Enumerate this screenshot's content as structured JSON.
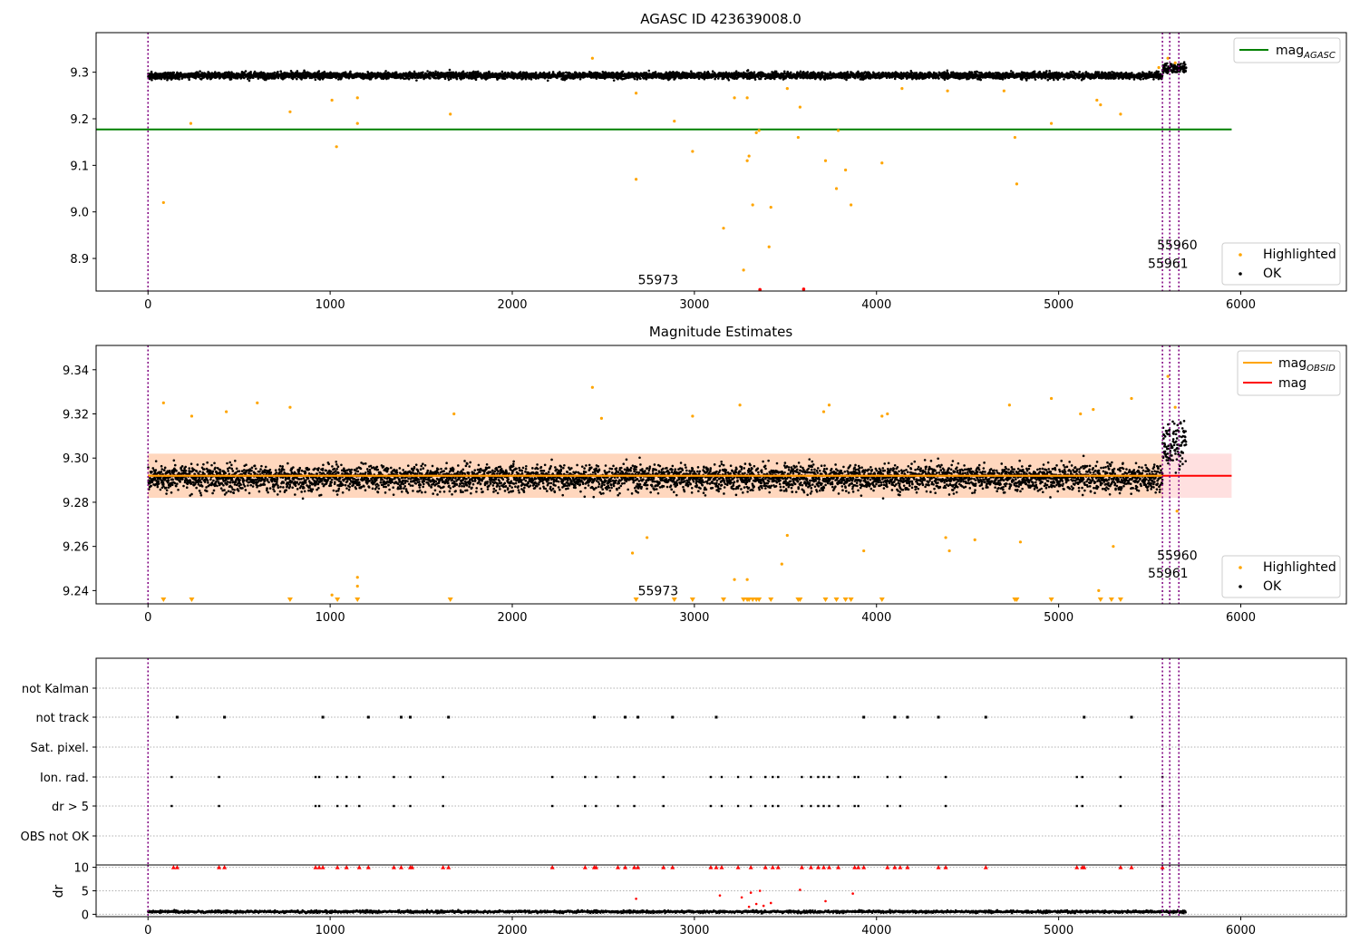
{
  "chart_data": [
    {
      "type": "scatter",
      "title": "AGASC ID 423639008.0",
      "xlim": [
        -285,
        6580
      ],
      "ylim": [
        8.83,
        9.385
      ],
      "xticks": [
        "0",
        "1000",
        "2000",
        "3000",
        "4000",
        "5000",
        "6000"
      ],
      "yticks": [
        "8.9",
        "9.0",
        "9.1",
        "9.2",
        "9.3"
      ],
      "legend_upper": {
        "placement": "upper-right",
        "entries": [
          {
            "label": "mag",
            "sub": "AGASC",
            "color": "#008000",
            "kind": "line"
          }
        ]
      },
      "legend_lower": {
        "placement": "lower-right",
        "entries": [
          {
            "label": "Highlighted",
            "color": "#ffa500",
            "kind": "dot"
          },
          {
            "label": "OK",
            "color": "#000000",
            "kind": "dot"
          }
        ]
      },
      "mag_agasc": 9.177,
      "mag_agasc_xrange": [
        -285,
        5950
      ],
      "ok_band": {
        "x": [
          0,
          5700
        ],
        "center": 9.293,
        "spread": 0.009
      },
      "obsid_labels": [
        {
          "text": "55973",
          "x": 2690,
          "y": 8.845
        },
        {
          "text": "55960",
          "x": 5540,
          "y": 8.92
        },
        {
          "text": "55961",
          "x": 5490,
          "y": 8.88
        }
      ],
      "highlighted_points": [
        [
          85,
          9.02
        ],
        [
          235,
          9.19
        ],
        [
          780,
          9.215
        ],
        [
          1035,
          9.14
        ],
        [
          1150,
          9.19
        ],
        [
          1660,
          9.21
        ],
        [
          2680,
          9.07
        ],
        [
          2890,
          9.195
        ],
        [
          2990,
          9.13
        ],
        [
          3160,
          8.965
        ],
        [
          3270,
          8.875
        ],
        [
          3290,
          9.11
        ],
        [
          3300,
          9.12
        ],
        [
          3320,
          9.015
        ],
        [
          3340,
          9.17
        ],
        [
          3355,
          9.175
        ],
        [
          3420,
          9.01
        ],
        [
          3410,
          8.925
        ],
        [
          3570,
          9.16
        ],
        [
          3580,
          9.225
        ],
        [
          3720,
          9.11
        ],
        [
          3780,
          9.05
        ],
        [
          3830,
          9.09
        ],
        [
          3860,
          9.015
        ],
        [
          3790,
          9.175
        ],
        [
          4030,
          9.105
        ],
        [
          4760,
          9.16
        ],
        [
          4770,
          9.06
        ],
        [
          4960,
          9.19
        ],
        [
          5230,
          9.23
        ],
        [
          1010,
          9.24
        ],
        [
          1150,
          9.245
        ],
        [
          2440,
          9.33
        ],
        [
          2680,
          9.255
        ],
        [
          3220,
          9.245
        ],
        [
          3290,
          9.245
        ],
        [
          3510,
          9.265
        ],
        [
          4140,
          9.265
        ],
        [
          4390,
          9.26
        ],
        [
          4700,
          9.26
        ],
        [
          5210,
          9.24
        ],
        [
          5340,
          9.21
        ],
        [
          5550,
          9.31
        ],
        [
          5600,
          9.33
        ],
        [
          5640,
          9.32
        ]
      ],
      "flagged_points": [
        [
          3360,
          8.833
        ],
        [
          3600,
          8.834
        ]
      ]
    },
    {
      "type": "scatter",
      "title": "Magnitude Estimates",
      "xlim": [
        -285,
        6580
      ],
      "ylim": [
        9.234,
        9.351
      ],
      "xticks": [
        "0",
        "1000",
        "2000",
        "3000",
        "4000",
        "5000",
        "6000"
      ],
      "yticks": [
        "9.24",
        "9.26",
        "9.28",
        "9.30",
        "9.32",
        "9.34"
      ],
      "legend_upper": {
        "placement": "upper-right",
        "entries": [
          {
            "label": "mag",
            "sub": "OBSID",
            "color": "#ffa500",
            "kind": "line"
          },
          {
            "label": "mag",
            "sub": "",
            "color": "#ff0000",
            "kind": "line"
          }
        ]
      },
      "legend_lower": {
        "placement": "lower-right",
        "entries": [
          {
            "label": "Highlighted",
            "color": "#ffa500",
            "kind": "dot"
          },
          {
            "label": "OK",
            "color": "#000000",
            "kind": "dot"
          }
        ]
      },
      "mag": 9.292,
      "mag_band": [
        9.282,
        9.302
      ],
      "mag_xrange": [
        0,
        5950
      ],
      "ok_band": {
        "x": [
          0,
          5700
        ],
        "center": 9.291,
        "spread": 0.0075
      },
      "obsid_labels": [
        {
          "text": "55973",
          "x": 2690,
          "y": 9.238
        },
        {
          "text": "55960",
          "x": 5540,
          "y": 9.254
        },
        {
          "text": "55961",
          "x": 5490,
          "y": 9.246
        }
      ],
      "highlighted_points": [
        [
          85,
          9.325
        ],
        [
          240,
          9.319
        ],
        [
          430,
          9.321
        ],
        [
          600,
          9.325
        ],
        [
          780,
          9.323
        ],
        [
          1010,
          9.238
        ],
        [
          1150,
          9.246
        ],
        [
          1150,
          9.242
        ],
        [
          1680,
          9.32
        ],
        [
          2440,
          9.332
        ],
        [
          2490,
          9.318
        ],
        [
          2660,
          9.257
        ],
        [
          2740,
          9.264
        ],
        [
          2990,
          9.319
        ],
        [
          3220,
          9.245
        ],
        [
          3290,
          9.245
        ],
        [
          3250,
          9.324
        ],
        [
          3510,
          9.265
        ],
        [
          3480,
          9.252
        ],
        [
          3710,
          9.321
        ],
        [
          3740,
          9.324
        ],
        [
          3930,
          9.258
        ],
        [
          4030,
          9.319
        ],
        [
          4060,
          9.32
        ],
        [
          4380,
          9.264
        ],
        [
          4400,
          9.258
        ],
        [
          4540,
          9.263
        ],
        [
          4730,
          9.324
        ],
        [
          4790,
          9.262
        ],
        [
          4960,
          9.327
        ],
        [
          5120,
          9.32
        ],
        [
          5190,
          9.322
        ],
        [
          5220,
          9.24
        ],
        [
          5300,
          9.26
        ],
        [
          5400,
          9.327
        ],
        [
          5600,
          9.337
        ],
        [
          5640,
          9.323
        ],
        [
          5650,
          9.276
        ]
      ],
      "off_scale_x": [
        85,
        240,
        780,
        1040,
        1150,
        1660,
        2680,
        2890,
        2990,
        3160,
        3270,
        3290,
        3300,
        3320,
        3340,
        3355,
        3420,
        3570,
        3580,
        3720,
        3780,
        3830,
        3860,
        4030,
        4760,
        4770,
        4960,
        5230,
        5290,
        5340
      ]
    },
    {
      "type": "scatter",
      "title": "",
      "xlim": [
        -285,
        6580
      ],
      "categories": [
        "OBS not OK",
        "dr > 5",
        "Ion. rad.",
        "Sat. pixel.",
        "not track",
        "not Kalman"
      ],
      "not_track_x": [
        160,
        420,
        960,
        1210,
        1390,
        1440,
        1650,
        2450,
        2620,
        2690,
        2880,
        3120,
        3930,
        4100,
        4170,
        4340,
        4600,
        5140,
        5400
      ],
      "flag_x": [
        130,
        390,
        920,
        940,
        1040,
        1090,
        1160,
        1350,
        1440,
        1620,
        2220,
        2400,
        2460,
        2580,
        2670,
        2830,
        3090,
        3150,
        3240,
        3310,
        3390,
        3430,
        3460,
        3590,
        3640,
        3680,
        3710,
        3740,
        3790,
        3880,
        3900,
        4060,
        4130,
        4380,
        5100,
        5130,
        5340,
        5570
      ]
    },
    {
      "type": "scatter",
      "title": "",
      "xlim": [
        -285,
        6580
      ],
      "ylim": [
        -0.5,
        10.5
      ],
      "ylabel": "dr",
      "xticks": [
        "0",
        "1000",
        "2000",
        "3000",
        "4000",
        "5000",
        "6000"
      ],
      "yticks": [
        "0",
        "5",
        "10"
      ],
      "baseline": {
        "x": [
          0,
          5700
        ],
        "mean": 0.55,
        "spread": 0.3
      },
      "clipped_x": [
        140,
        160,
        390,
        420,
        920,
        940,
        960,
        1040,
        1090,
        1160,
        1210,
        1350,
        1390,
        1440,
        1450,
        1620,
        1650,
        2220,
        2400,
        2450,
        2460,
        2580,
        2620,
        2670,
        2690,
        2830,
        2880,
        3090,
        3120,
        3150,
        3240,
        3310,
        3390,
        3430,
        3460,
        3590,
        3640,
        3680,
        3710,
        3740,
        3790,
        3880,
        3900,
        3930,
        4060,
        4100,
        4130,
        4170,
        4340,
        4380,
        4600,
        5100,
        5130,
        5140,
        5340,
        5400,
        5570
      ],
      "mid_points": [
        [
          2680,
          3.3
        ],
        [
          3140,
          4.0
        ],
        [
          3260,
          3.6
        ],
        [
          3310,
          4.6
        ],
        [
          3360,
          5.0
        ],
        [
          3420,
          2.4
        ],
        [
          3580,
          5.2
        ],
        [
          3720,
          2.8
        ],
        [
          3870,
          4.4
        ],
        [
          3300,
          1.6
        ],
        [
          3340,
          2.2
        ],
        [
          3380,
          1.8
        ]
      ]
    }
  ],
  "vlines_x": [
    0,
    5570,
    5610,
    5660
  ]
}
